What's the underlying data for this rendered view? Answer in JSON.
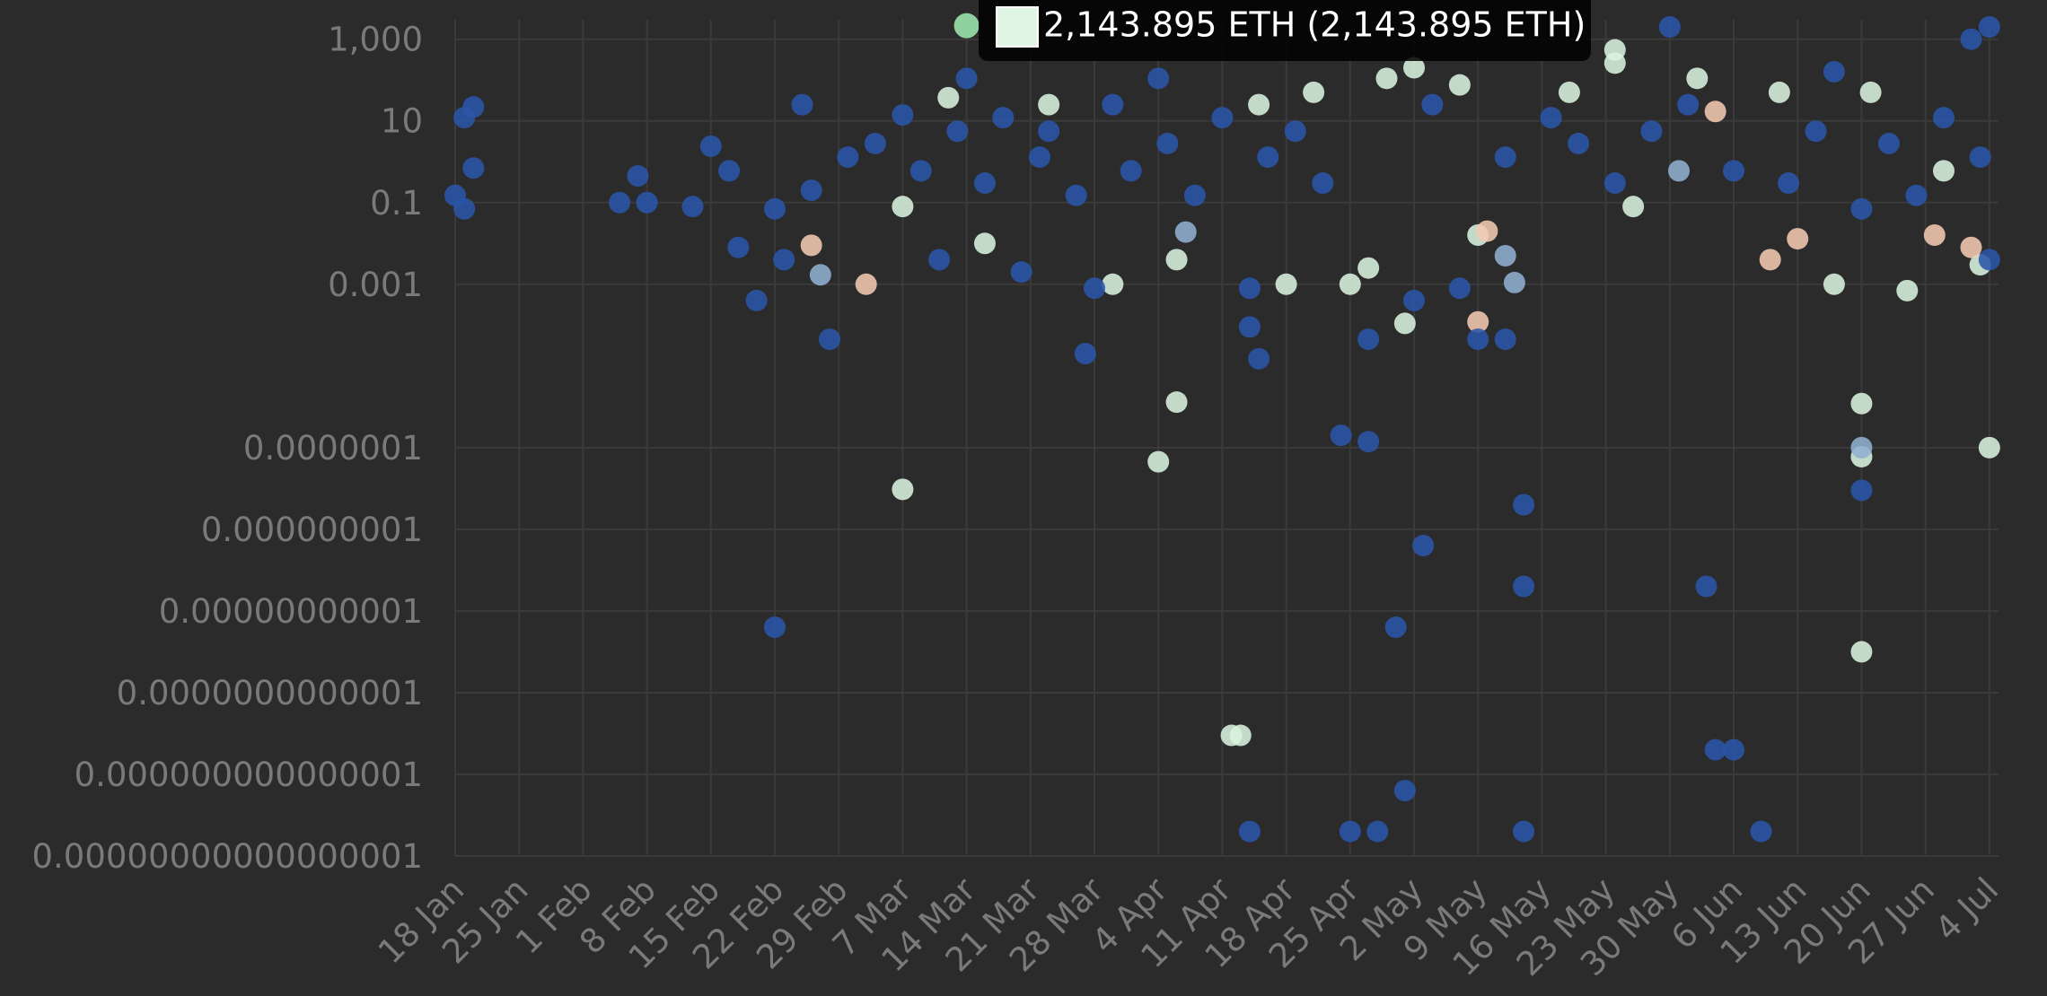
{
  "chart_data": {
    "type": "scatter",
    "yscale": "log",
    "grid": true,
    "background": "#2b2b2b",
    "xlim": [
      "18 Jan",
      "5 Jul"
    ],
    "xticks": [
      "18 Jan",
      "25 Jan",
      "1 Feb",
      "8 Feb",
      "15 Feb",
      "22 Feb",
      "29 Feb",
      "7 Mar",
      "14 Mar",
      "21 Mar",
      "28 Mar",
      "4 Apr",
      "11 Apr",
      "18 Apr",
      "25 Apr",
      "2 May",
      "9 May",
      "16 May",
      "23 May",
      "30 May",
      "6 Jun",
      "13 Jun",
      "20 Jun",
      "27 Jun",
      "4 Jul"
    ],
    "ylim": [
      1e-17,
      3000
    ],
    "yticks": [
      {
        "value": 1000,
        "label": "1,000"
      },
      10,
      0.1,
      0.001,
      {
        "value": 1e-07,
        "label": "0.0000001"
      },
      {
        "value": 1e-09,
        "label": "0.000000001"
      },
      {
        "value": 1e-11,
        "label": "0.00000000001"
      },
      {
        "value": 1e-13,
        "label": "0.0000000000001"
      },
      {
        "value": 1e-15,
        "label": "0.000000000000001"
      },
      {
        "value": 1e-17,
        "label": "0.00000000000000001"
      }
    ],
    "series": [
      {
        "color": "#d9f2de",
        "x": [
          "7 Mar",
          "7 Mar",
          "16 Mar",
          "30 Mar",
          "4 Apr",
          "6 Apr",
          "6 Apr",
          "12 Apr",
          "13 Apr",
          "18 Apr",
          "25 Apr",
          "27 Apr",
          "1 May",
          "29 Apr",
          "2 May",
          "9 May",
          "24 May",
          "24 May",
          "26 May",
          "11 Jun",
          "17 Jun",
          "20 Jun",
          "20 Jun",
          "20 Jun",
          "25 Jun",
          "29 Jun",
          "3 Jul",
          "4 Jul",
          "12 Mar",
          "23 Mar",
          "15 Apr",
          "21 Apr",
          "7 May",
          "19 May",
          "2 Jun",
          "21 Jun"
        ],
        "values": [
          0.08,
          9.5e-09,
          0.01,
          0.001,
          4.5e-08,
          1.3e-06,
          0.004,
          9e-15,
          9e-15,
          0.001,
          0.001,
          0.0025,
          0.00011,
          110,
          200,
          0.016,
          260,
          550,
          0.08,
          50,
          0.001,
          1.2e-06,
          6e-08,
          1e-12,
          0.0007,
          0.6,
          0.003,
          1e-07,
          37,
          25,
          25,
          50,
          76,
          50,
          110,
          50
        ]
      },
      {
        "color": "#f2c8b0",
        "x": [
          "3 Mar",
          "26 Feb",
          "9 May",
          "10 May",
          "10 Jun",
          "13 Jun",
          "28 Jun",
          "2 Jul",
          "4 Jun"
        ],
        "values": [
          0.001,
          0.009,
          0.00012,
          0.02,
          0.004,
          0.013,
          0.016,
          0.008,
          17
        ]
      },
      {
        "color": "#8fafd0",
        "x": [
          "27 Feb",
          "7 Apr",
          "12 May",
          "13 May",
          "20 Jun",
          "31 May"
        ],
        "values": [
          0.0017,
          0.019,
          0.005,
          0.0011,
          1e-07,
          0.6
        ]
      },
      {
        "color": "#2a55a8",
        "x": [
          "18 Jan",
          "19 Jan",
          "20 Jan",
          "20 Jan",
          "19 Jan",
          "5 Feb",
          "7 Feb",
          "8 Feb",
          "13 Feb",
          "15 Feb",
          "17 Feb",
          "18 Feb",
          "20 Feb",
          "22 Feb",
          "22 Feb",
          "23 Feb",
          "25 Feb",
          "26 Feb",
          "28 Feb",
          "1 Mar",
          "4 Mar",
          "7 Mar",
          "9 Mar",
          "11 Mar",
          "13 Mar",
          "14 Mar",
          "16 Mar",
          "18 Mar",
          "20 Mar",
          "22 Mar",
          "23 Mar",
          "26 Mar",
          "27 Mar",
          "28 Mar",
          "30 Mar",
          "1 Apr",
          "4 Apr",
          "5 Apr",
          "8 Apr",
          "11 Apr",
          "14 Apr",
          "14 Apr",
          "15 Apr",
          "14 Apr",
          "16 Apr",
          "19 Apr",
          "22 Apr",
          "24 Apr",
          "25 Apr",
          "27 Apr",
          "28 Apr",
          "27 Apr",
          "30 Apr",
          "1 May",
          "3 May",
          "2 May",
          "4 May",
          "7 May",
          "9 May",
          "12 May",
          "14 May",
          "14 May",
          "14 May",
          "12 May",
          "17 May",
          "20 May",
          "24 May",
          "28 May",
          "30 May",
          "1 Jun",
          "3 Jun",
          "4 Jun",
          "6 Jun",
          "6 Jun",
          "9 Jun",
          "12 Jun",
          "15 Jun",
          "17 Jun",
          "20 Jun",
          "20 Jun",
          "23 Jun",
          "26 Jun",
          "29 Jun",
          "2 Jul",
          "3 Jul",
          "4 Jul",
          "4 Jul"
        ],
        "values": [
          0.15,
          12,
          22,
          0.7,
          0.07,
          0.1,
          0.45,
          0.1,
          0.08,
          2.4,
          0.6,
          0.008,
          0.0004,
          4e-12,
          0.07,
          0.004,
          25,
          0.2,
          4.5e-05,
          1.3,
          2.8,
          14,
          0.6,
          0.004,
          5.6,
          110,
          0.3,
          12,
          0.002,
          1.3,
          5.6,
          0.15,
          2e-05,
          0.0008,
          25,
          0.6,
          110,
          2.8,
          0.15,
          12,
          0.0008,
          9e-05,
          1.5e-05,
          4e-17,
          1.3,
          5.6,
          0.3,
          2e-07,
          4e-17,
          1.4e-07,
          4e-17,
          4.5e-05,
          4e-12,
          4e-16,
          4e-10,
          0.0004,
          25,
          0.0008,
          4.5e-05,
          4.5e-05,
          4e-09,
          4e-11,
          4e-17,
          1.3,
          12,
          2.8,
          0.3,
          5.6,
          2000,
          25,
          4e-11,
          4e-15,
          4e-15,
          0.6,
          4e-17,
          0.3,
          5.6,
          160,
          9e-09,
          0.07,
          2.8,
          0.15,
          12,
          1000,
          1.3,
          2000,
          0.004
        ]
      }
    ],
    "tooltip": {
      "x": "14 Mar",
      "value": 2143.895,
      "point_color": "#8fd19e",
      "swatch_color": "#e0f5e4",
      "text": "2,143.895 ETH (2,143.895 ETH)"
    }
  }
}
